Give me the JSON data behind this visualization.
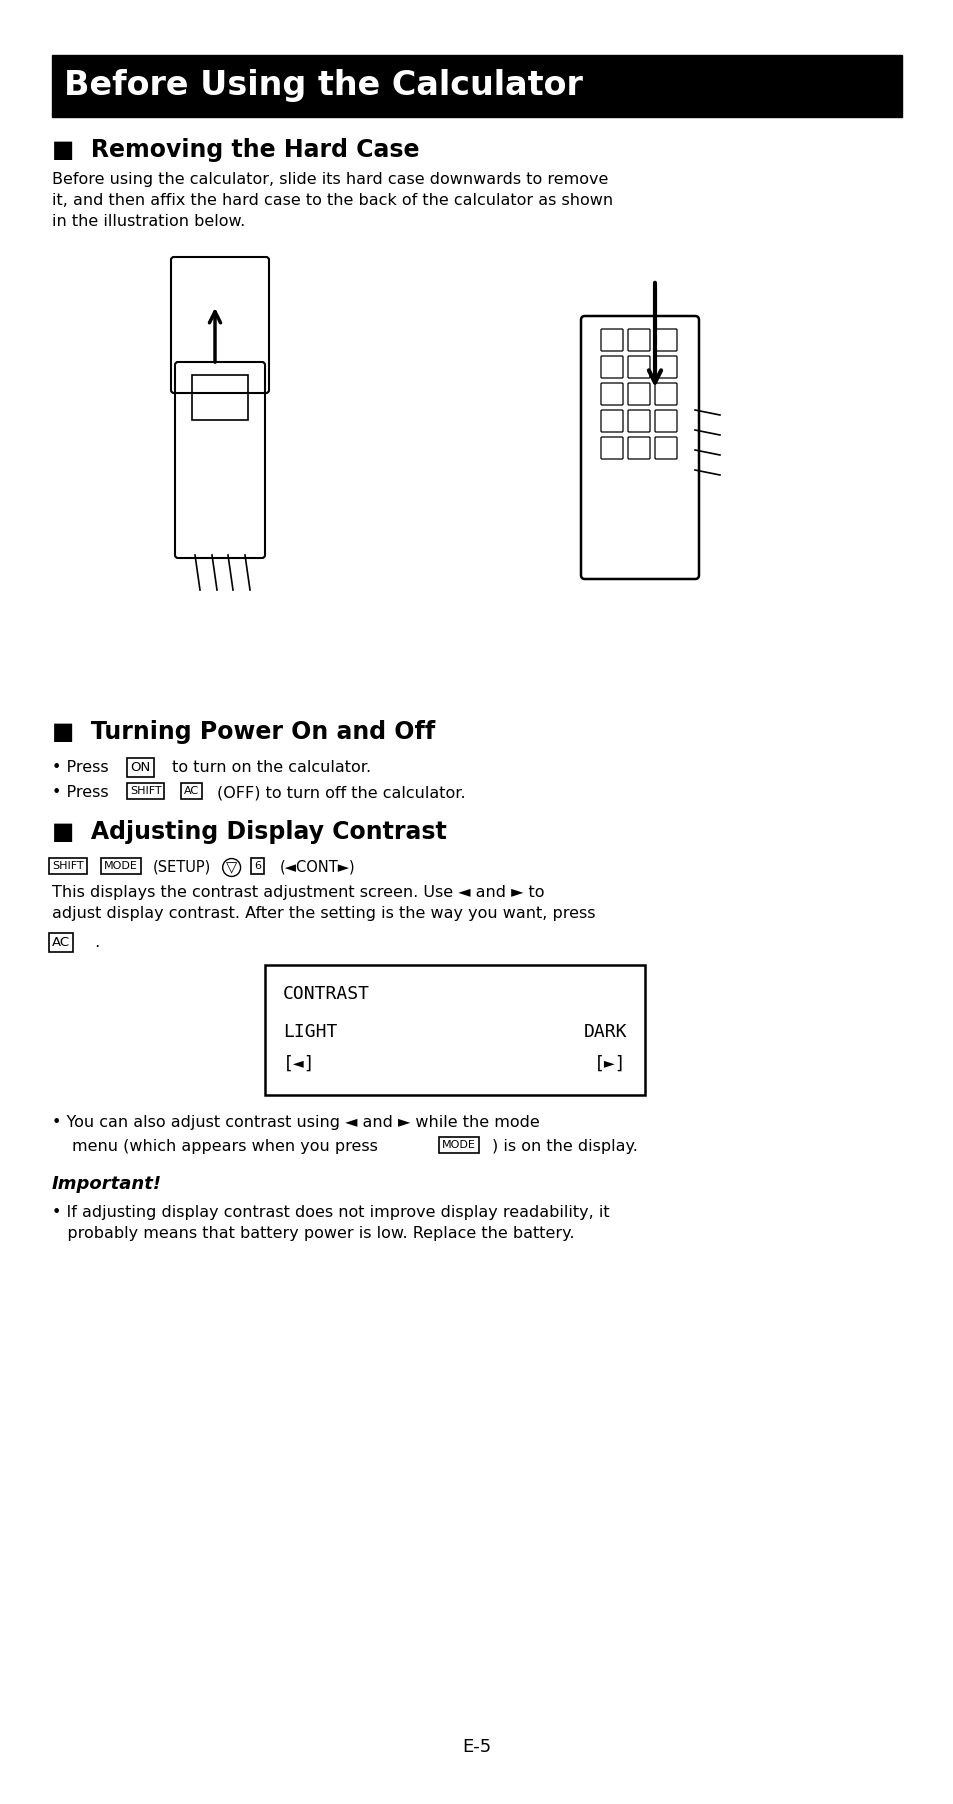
{
  "page_bg": "#ffffff",
  "header_bg": "#000000",
  "header_text": "Before Using the Calculator",
  "header_text_color": "#ffffff",
  "section1_title": "■  Removing the Hard Case",
  "section1_body": "Before using the calculator, slide its hard case downwards to remove\nit, and then affix the hard case to the back of the calculator as shown\nin the illustration below.",
  "section2_title": "■  Turning Power On and Off",
  "section3_title": "■  Adjusting Display Contrast",
  "contrast_line1": "CONTRAST",
  "contrast_line2": "LIGHT",
  "contrast_line3": "DARK",
  "contrast_line4": "[◄]",
  "contrast_line5": "[►]",
  "bullet3a": "• You can also adjust contrast using ◄ and ► while the mode",
  "bullet3b": "   menu (which appears when you press ",
  "bullet3b_end": ") is on the display.",
  "important_title": "Important!",
  "important_body1": "• If adjusting display contrast does not improve display readability, it",
  "important_body2": "   probably means that battery power is low. Replace the battery.",
  "page_number": "E-5",
  "text_color": "#000000"
}
